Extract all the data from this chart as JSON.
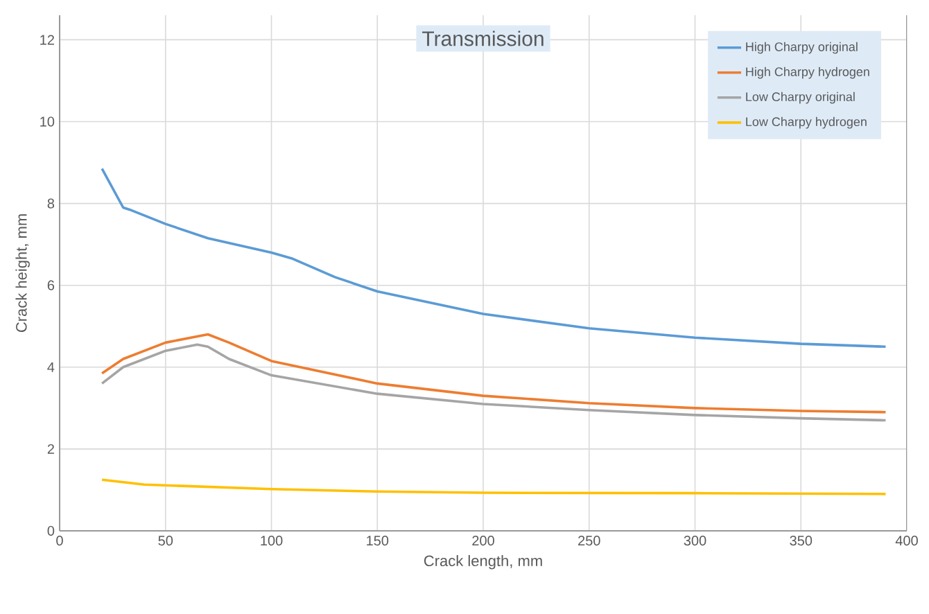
{
  "chart_data": {
    "type": "line",
    "title": "Transmission",
    "xlabel": "Crack length, mm",
    "ylabel": "Crack height, mm",
    "xlim": [
      0,
      400
    ],
    "xticks": [
      0,
      50,
      100,
      150,
      200,
      250,
      300,
      350,
      400
    ],
    "ylim": [
      0,
      12.6
    ],
    "yticks": [
      0,
      2,
      4,
      6,
      8,
      10,
      12
    ],
    "grid": true,
    "legend": "top right",
    "marker": "none",
    "line_style": "solid",
    "series": [
      {
        "name": "High Charpy original",
        "color": "#5b9bd5",
        "x": [
          20,
          30,
          33,
          50,
          70,
          100,
          110,
          130,
          150,
          200,
          250,
          300,
          350,
          390
        ],
        "values": [
          8.85,
          7.9,
          7.85,
          7.5,
          7.15,
          6.8,
          6.65,
          6.2,
          5.85,
          5.3,
          4.95,
          4.72,
          4.57,
          4.5
        ]
      },
      {
        "name": "High Charpy hydrogen",
        "color": "#ed7d31",
        "x": [
          20,
          30,
          50,
          70,
          80,
          100,
          150,
          200,
          250,
          300,
          350,
          390
        ],
        "values": [
          3.85,
          4.2,
          4.6,
          4.8,
          4.6,
          4.15,
          3.6,
          3.3,
          3.12,
          3.0,
          2.93,
          2.9
        ]
      },
      {
        "name": "Low Charpy original",
        "color": "#a5a5a5",
        "x": [
          20,
          30,
          50,
          65,
          70,
          80,
          100,
          150,
          200,
          250,
          300,
          350,
          390
        ],
        "values": [
          3.6,
          4.0,
          4.4,
          4.55,
          4.5,
          4.2,
          3.8,
          3.35,
          3.1,
          2.95,
          2.83,
          2.75,
          2.7
        ]
      },
      {
        "name": "Low Charpy hydrogen",
        "color": "#ffc000",
        "x": [
          20,
          40,
          100,
          150,
          200,
          300,
          390
        ],
        "values": [
          1.25,
          1.13,
          1.02,
          0.96,
          0.93,
          0.92,
          0.9
        ]
      }
    ]
  }
}
